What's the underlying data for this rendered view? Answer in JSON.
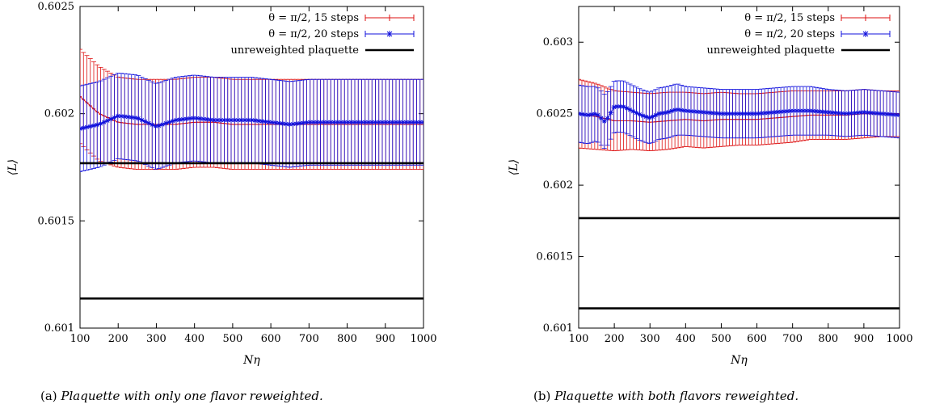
{
  "chart_data": [
    {
      "type": "line",
      "caption_tag": "(a)",
      "caption_text": "Plaquette with only one flavor reweighted.",
      "xlabel": "Nη",
      "ylabel": "⟨L⟩",
      "xlim": [
        100,
        1000
      ],
      "ylim": [
        0.601,
        0.6025
      ],
      "xticks": [
        "100",
        "200",
        "300",
        "400",
        "500",
        "600",
        "700",
        "800",
        "900",
        "1000"
      ],
      "xtick_values": [
        100,
        200,
        300,
        400,
        500,
        600,
        700,
        800,
        900,
        1000
      ],
      "yticks": [
        "0.601",
        "0.6015",
        "0.602",
        "0.6025"
      ],
      "ytick_values": [
        0.601,
        0.6015,
        0.602,
        0.6025
      ],
      "grid": false,
      "legend_position": "top-right",
      "series": [
        {
          "name": "θ = π/2, 15 steps",
          "color": "#dd1111",
          "marker": "plus",
          "x": [
            100,
            150,
            200,
            250,
            300,
            350,
            400,
            450,
            500,
            550,
            600,
            650,
            700,
            750,
            800,
            850,
            900,
            950,
            1000
          ],
          "y": [
            0.60208,
            0.602,
            0.60196,
            0.60195,
            0.60195,
            0.60195,
            0.60196,
            0.60196,
            0.60195,
            0.60195,
            0.60195,
            0.60195,
            0.60195,
            0.60195,
            0.60195,
            0.60195,
            0.60195,
            0.60195,
            0.60195
          ],
          "err": [
            0.00022,
            0.00022,
            0.00021,
            0.00021,
            0.00021,
            0.00021,
            0.00021,
            0.00021,
            0.00021,
            0.00021,
            0.00021,
            0.00021,
            0.00021,
            0.00021,
            0.00021,
            0.00021,
            0.00021,
            0.00021,
            0.00021
          ]
        },
        {
          "name": "θ = π/2, 20 steps",
          "color": "#1111dd",
          "marker": "star",
          "x": [
            100,
            150,
            200,
            250,
            300,
            350,
            400,
            450,
            500,
            550,
            600,
            650,
            700,
            750,
            800,
            850,
            900,
            950,
            1000
          ],
          "y": [
            0.60193,
            0.60195,
            0.60199,
            0.60198,
            0.60194,
            0.60197,
            0.60198,
            0.60197,
            0.60197,
            0.60197,
            0.60196,
            0.60195,
            0.60196,
            0.60196,
            0.60196,
            0.60196,
            0.60196,
            0.60196,
            0.60196
          ],
          "err": [
            0.0002,
            0.0002,
            0.0002,
            0.0002,
            0.0002,
            0.0002,
            0.0002,
            0.0002,
            0.0002,
            0.0002,
            0.0002,
            0.0002,
            0.0002,
            0.0002,
            0.0002,
            0.0002,
            0.0002,
            0.0002,
            0.0002
          ]
        },
        {
          "name": "unreweighted plaquette",
          "color": "#000000",
          "marker": "none",
          "hlines": [
            0.601769,
            0.601138
          ]
        }
      ]
    },
    {
      "type": "line",
      "caption_tag": "(b)",
      "caption_text": "Plaquette with both flavors reweighted.",
      "xlabel": "Nη",
      "ylabel": "⟨L⟩",
      "xlim": [
        100,
        1000
      ],
      "ylim": [
        0.601,
        0.60325
      ],
      "xticks": [
        "100",
        "200",
        "300",
        "400",
        "500",
        "600",
        "700",
        "800",
        "900",
        "1000"
      ],
      "xtick_values": [
        100,
        200,
        300,
        400,
        500,
        600,
        700,
        800,
        900,
        1000
      ],
      "yticks": [
        "0.601",
        "0.6015",
        "0.602",
        "0.6025",
        "0.603"
      ],
      "ytick_values": [
        0.601,
        0.6015,
        0.602,
        0.6025,
        0.603
      ],
      "grid": false,
      "legend_position": "top-right",
      "series": [
        {
          "name": "θ = π/2, 15 steps",
          "color": "#dd1111",
          "marker": "plus",
          "x": [
            100,
            150,
            200,
            250,
            300,
            350,
            400,
            450,
            500,
            550,
            600,
            650,
            700,
            750,
            800,
            850,
            900,
            950,
            1000
          ],
          "y": [
            0.6025,
            0.60248,
            0.60245,
            0.60245,
            0.60244,
            0.60245,
            0.60246,
            0.60245,
            0.60246,
            0.60246,
            0.60246,
            0.60247,
            0.60248,
            0.60249,
            0.60249,
            0.60249,
            0.6025,
            0.6025,
            0.6025
          ],
          "err": [
            0.00024,
            0.00023,
            0.00021,
            0.0002,
            0.0002,
            0.0002,
            0.00019,
            0.00019,
            0.00019,
            0.00018,
            0.00018,
            0.00018,
            0.00018,
            0.00017,
            0.00017,
            0.00017,
            0.00017,
            0.00016,
            0.00016
          ]
        },
        {
          "name": "θ = π/2, 20 steps",
          "color": "#1111dd",
          "marker": "star",
          "x": [
            100,
            125,
            150,
            175,
            200,
            225,
            250,
            275,
            300,
            325,
            350,
            375,
            400,
            450,
            500,
            550,
            600,
            650,
            700,
            750,
            800,
            850,
            900,
            950,
            1000
          ],
          "y": [
            0.6025,
            0.60249,
            0.6025,
            0.60244,
            0.60255,
            0.60255,
            0.60252,
            0.60249,
            0.60247,
            0.6025,
            0.60251,
            0.60253,
            0.60252,
            0.60251,
            0.6025,
            0.6025,
            0.6025,
            0.60251,
            0.60252,
            0.60252,
            0.60251,
            0.6025,
            0.60251,
            0.6025,
            0.60249
          ],
          "err": [
            0.0002,
            0.0002,
            0.00019,
            0.00019,
            0.00018,
            0.00018,
            0.00018,
            0.00018,
            0.00018,
            0.00018,
            0.00018,
            0.00018,
            0.00017,
            0.00017,
            0.00017,
            0.00017,
            0.00017,
            0.00017,
            0.00017,
            0.00017,
            0.00016,
            0.00016,
            0.00016,
            0.00016,
            0.00016
          ]
        },
        {
          "name": "unreweighted plaquette",
          "color": "#000000",
          "marker": "none",
          "hlines": [
            0.601769,
            0.601138
          ]
        }
      ]
    }
  ]
}
